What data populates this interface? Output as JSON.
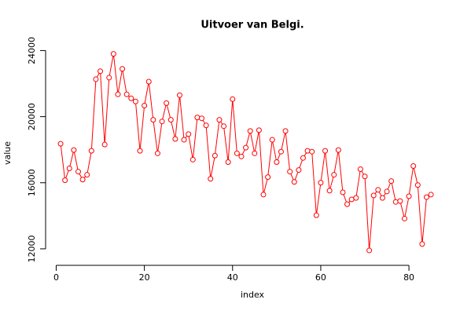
{
  "chart_data": {
    "type": "line",
    "title": "Uitvoer van Belgi.",
    "x_label": "index",
    "y_label": "value",
    "color": "#ff0000",
    "x": [
      1,
      2,
      3,
      4,
      5,
      6,
      7,
      8,
      9,
      10,
      11,
      12,
      13,
      14,
      15,
      16,
      17,
      18,
      19,
      20,
      21,
      22,
      23,
      24,
      25,
      26,
      27,
      28,
      29,
      30,
      31,
      32,
      33,
      34,
      35,
      36,
      37,
      38,
      39,
      40,
      41,
      42,
      43,
      44,
      45,
      46,
      47,
      48,
      49,
      50,
      51,
      52,
      53,
      54,
      55,
      56,
      57,
      58,
      59,
      60,
      61,
      62,
      63,
      64,
      65,
      66,
      67,
      68,
      69,
      70,
      71,
      72,
      73,
      74,
      75,
      76,
      77,
      78,
      79,
      80,
      81,
      82,
      83,
      84,
      85
    ],
    "values": [
      18360,
      16150,
      16870,
      17980,
      16670,
      16190,
      16480,
      17930,
      22265,
      22750,
      18310,
      22360,
      23800,
      21350,
      22890,
      21350,
      21110,
      20920,
      17930,
      20670,
      22120,
      19810,
      17780,
      19710,
      20820,
      19810,
      18650,
      21300,
      18600,
      18940,
      17400,
      19950,
      19900,
      19470,
      16240,
      17640,
      19810,
      19420,
      17250,
      21060,
      17780,
      17590,
      18120,
      19130,
      17780,
      19180,
      15280,
      16340,
      18600,
      17250,
      17880,
      19130,
      16670,
      16050,
      16770,
      17500,
      17930,
      17880,
      14030,
      16000,
      17930,
      15520,
      16480,
      17980,
      15420,
      14700,
      14990,
      15080,
      16820,
      16380,
      11900,
      15230,
      15570,
      15080,
      15470,
      16100,
      14840,
      14890,
      13830,
      15180,
      17010,
      15860,
      12290,
      15130,
      15280
    ],
    "xlim": [
      -2.4,
      91.4
    ],
    "xticks": [
      0,
      20,
      40,
      60,
      80
    ],
    "ylim": [
      11000,
      24400
    ],
    "yticks": [
      12000,
      16000,
      20000,
      24000
    ]
  }
}
